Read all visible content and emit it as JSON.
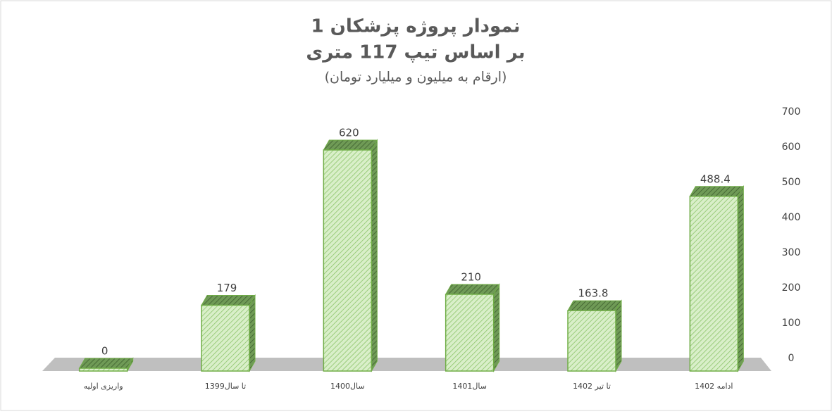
{
  "chart_data": {
    "type": "bar3d",
    "title": "نمودار پروژه پزشکان 1",
    "subtitle": "بر اساس تیپ 117 متری",
    "note": "(ارقام به میلیون و میلیارد تومان)",
    "categories": [
      "واریزی اولیه",
      "تا سال1399",
      "سال1400",
      "سال1401",
      "تا تیر 1402",
      "ادامه 1402"
    ],
    "values": [
      0,
      179,
      620,
      210,
      163.8,
      488.4
    ],
    "color": "#70ad47",
    "ylim": [
      0,
      700
    ],
    "yticks": [
      0,
      100,
      200,
      300,
      400,
      500,
      600,
      700
    ],
    "axis_side": "right"
  }
}
